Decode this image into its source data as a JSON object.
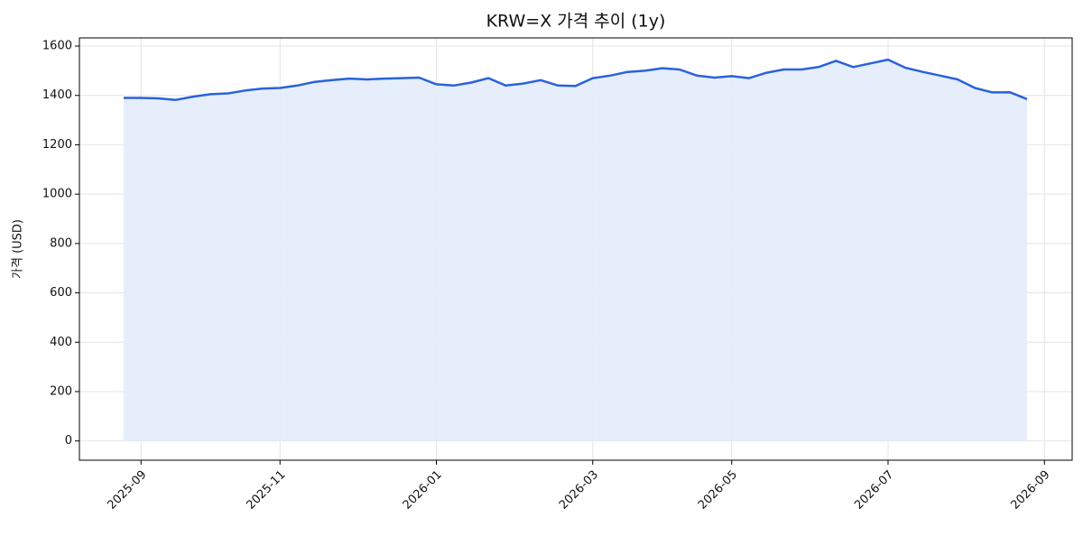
{
  "chart_data": {
    "type": "line",
    "title": "KRW=X 가격 추이 (1y)",
    "y_label": "가격 (USD)",
    "categories": [
      null,
      "2025-09",
      null,
      null,
      null,
      null,
      null,
      null,
      null,
      "2025-11",
      null,
      null,
      null,
      null,
      null,
      null,
      null,
      null,
      "2026-01",
      null,
      null,
      null,
      null,
      null,
      null,
      null,
      null,
      "2026-03",
      null,
      null,
      null,
      null,
      null,
      null,
      null,
      "2026-05",
      null,
      null,
      null,
      null,
      null,
      null,
      null,
      null,
      "2026-07",
      null,
      null,
      null,
      null,
      null,
      null,
      null,
      null,
      "2026-09"
    ],
    "series": [
      {
        "color": "#2a62dc",
        "fill": "#e3ecfb",
        "values": [
          1390,
          1390,
          1388,
          1382,
          1395,
          1405,
          1408,
          1420,
          1428,
          1430,
          1440,
          1455,
          1462,
          1468,
          1465,
          1468,
          1470,
          1472,
          1445,
          1440,
          1452,
          1470,
          1440,
          1448,
          1462,
          1440,
          1438,
          1470,
          1480,
          1495,
          1500,
          1510,
          1505,
          1480,
          1472,
          1478,
          1470,
          1492,
          1505,
          1505,
          1515,
          1540,
          1515,
          1530,
          1545,
          1512,
          1495,
          1480,
          1465,
          1430,
          1412,
          1413,
          1385,
          null
        ]
      }
    ],
    "ylim": [
      -78,
      1633
    ],
    "yticks": [
      0,
      200,
      400,
      600,
      800,
      1000,
      1200,
      1400,
      1600
    ],
    "grid": true
  }
}
